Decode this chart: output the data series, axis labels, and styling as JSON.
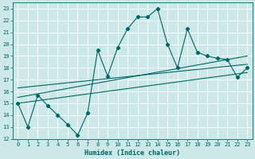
{
  "xlabel": "Humidex (Indice chaleur)",
  "bg_color": "#cce8e8",
  "grid_color": "#ffffff",
  "line_color": "#006666",
  "xlim": [
    -0.5,
    23.5
  ],
  "ylim": [
    12,
    23.5
  ],
  "xticks": [
    0,
    1,
    2,
    3,
    4,
    5,
    6,
    7,
    8,
    9,
    10,
    11,
    12,
    13,
    14,
    15,
    16,
    17,
    18,
    19,
    20,
    21,
    22,
    23
  ],
  "yticks": [
    12,
    13,
    14,
    15,
    16,
    17,
    18,
    19,
    20,
    21,
    22,
    23
  ],
  "scatter_x": [
    0,
    1,
    2,
    3,
    4,
    5,
    6,
    7,
    8,
    9,
    10,
    11,
    12,
    13,
    14,
    15,
    16,
    17,
    18,
    19,
    20,
    21,
    22,
    23
  ],
  "scatter_y": [
    15,
    13,
    15.7,
    14.8,
    14,
    13.2,
    12.3,
    14.2,
    19.5,
    17.3,
    19.7,
    21.3,
    22.3,
    22.3,
    23,
    20,
    18,
    21.3,
    19.3,
    19,
    18.8,
    18.7,
    17.2,
    18
  ],
  "reg_line1_x": [
    0,
    23
  ],
  "reg_line1_y": [
    15.5,
    19.0
  ],
  "reg_line2_x": [
    0,
    23
  ],
  "reg_line2_y": [
    16.3,
    18.3
  ],
  "reg_line3_x": [
    0,
    23
  ],
  "reg_line3_y": [
    15.0,
    17.6
  ],
  "tick_fontsize": 5,
  "xlabel_fontsize": 6,
  "linewidth": 0.8,
  "markersize": 2.2
}
